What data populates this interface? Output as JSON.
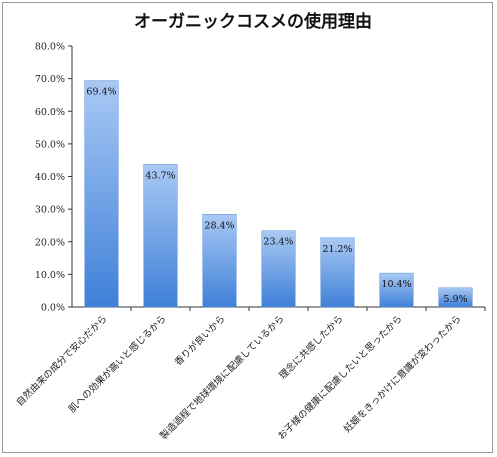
{
  "chart_data": {
    "type": "bar",
    "title": "オーガニックコスメの使用理由",
    "categories": [
      "自然由来の成分で安心だから",
      "肌への効果が高いと感じるから",
      "香りが良いから",
      "製造過程で地球環境に配慮しているから",
      "理念に共感したから",
      "お子様の健康に配慮したいと思ったから",
      "妊娠をきっかけに意識が変わったから"
    ],
    "values": [
      69.4,
      43.7,
      28.4,
      23.4,
      21.2,
      10.4,
      5.9
    ],
    "value_labels": [
      "69.4%",
      "43.7%",
      "28.4%",
      "23.4%",
      "21.2%",
      "10.4%",
      "5.9%"
    ],
    "ylim": [
      0,
      80
    ],
    "yticks": [
      "0.0%",
      "10.0%",
      "20.0%",
      "30.0%",
      "40.0%",
      "50.0%",
      "60.0%",
      "70.0%",
      "80.0%"
    ],
    "ytick_values": [
      0,
      10,
      20,
      30,
      40,
      50,
      60,
      70,
      80
    ],
    "grid": false,
    "bar_color_top": "#a9c9f4",
    "bar_color_bottom": "#3f80d8"
  }
}
